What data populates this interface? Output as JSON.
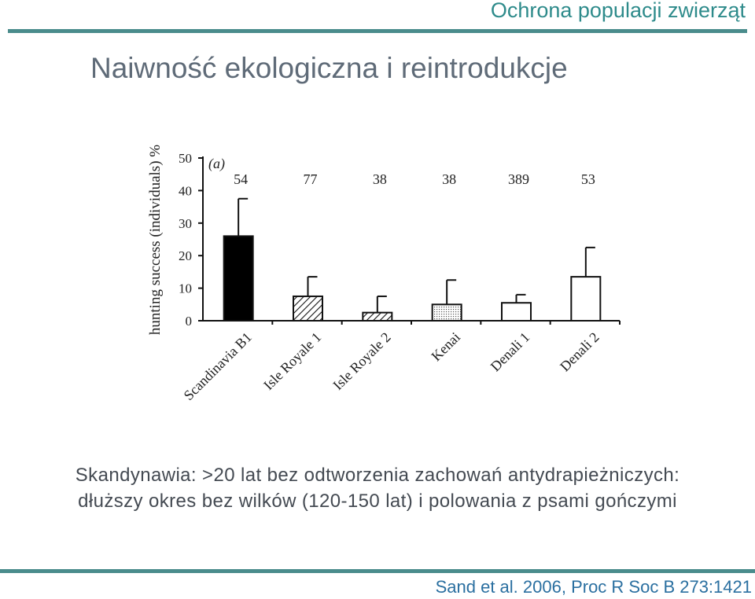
{
  "header": {
    "title": "Ochrona populacji zwierząt"
  },
  "slide": {
    "title": "Naiwność ekologiczna i reintrodukcje",
    "caption_line1": "Skandynawia: >20 lat bez odtworzenia zachowań antydrapieżniczych:",
    "caption_line2": "dłuższy okres bez wilków (120-150 lat) i polowania z psami gończymi"
  },
  "footer": {
    "citation": "Sand et al. 2006, Proc R Soc B 273:1421"
  },
  "chart_data": {
    "type": "bar",
    "panel_label": "(a)",
    "ylabel": "hunting success (individuals) %",
    "xlabel": "",
    "ylim": [
      0,
      50
    ],
    "yticks": [
      0,
      10,
      20,
      30,
      40,
      50
    ],
    "categories": [
      "Scandinavia B1",
      "Isle Royale 1",
      "Isle Royale 2",
      "Kenai",
      "Denali 1",
      "Denali 2"
    ],
    "values": [
      26,
      7.5,
      2.5,
      5,
      5.5,
      13.5
    ],
    "error_upper": [
      37.5,
      13.5,
      7.5,
      12.5,
      8,
      22.5
    ],
    "sample_sizes": [
      "54",
      "77",
      "38",
      "38",
      "389",
      "53"
    ],
    "fills": [
      "solid",
      "hatched",
      "hatched",
      "dotted",
      "open",
      "open"
    ]
  }
}
